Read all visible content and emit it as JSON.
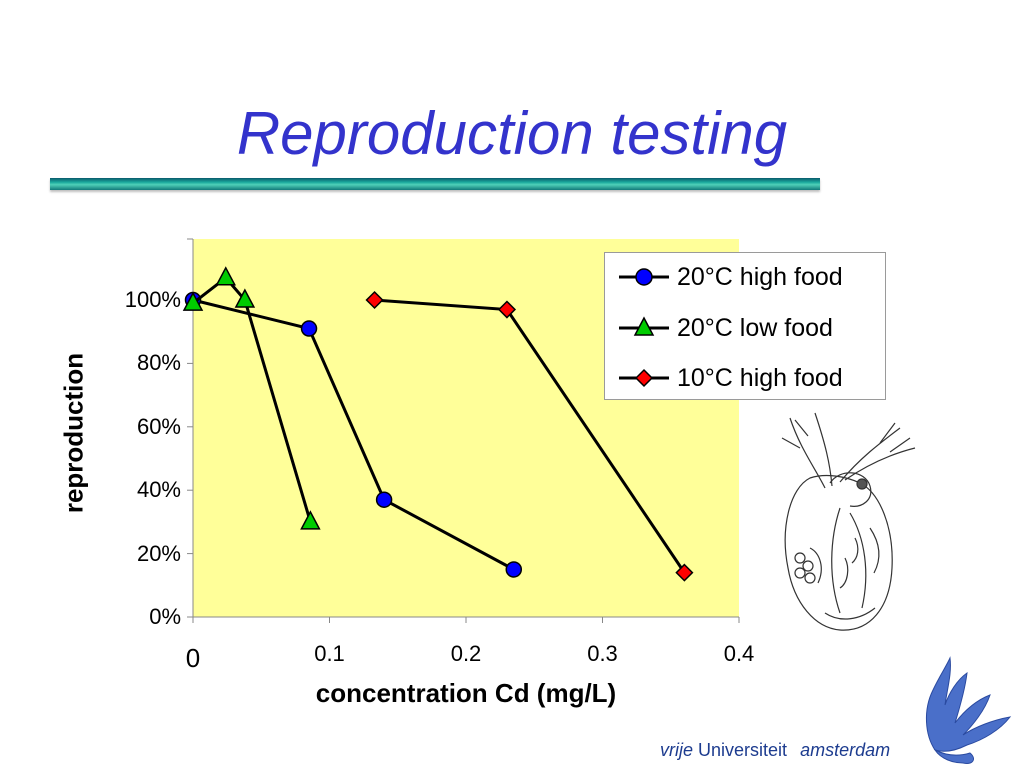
{
  "slide": {
    "title": "Reproduction testing",
    "brand": {
      "vrije": "vrije",
      "universiteit": "Universiteit",
      "amsterdam": "amsterdam"
    }
  },
  "colors": {
    "title": "#3333cc",
    "plot_background": "#ffff99",
    "title_rule": "#1aa89c",
    "series_line": "#000000"
  },
  "chart_data": {
    "type": "line",
    "xlabel": "concentration Cd (mg/L)",
    "ylabel": "reproduction",
    "xlim": [
      0,
      0.4
    ],
    "ylim": [
      0,
      1.2
    ],
    "x_ticks": [
      0,
      0.1,
      0.2,
      0.3,
      0.4
    ],
    "x_tick_labels": [
      "0",
      "0.1",
      "0.2",
      "0.3",
      "0.4"
    ],
    "y_ticks": [
      0,
      0.2,
      0.4,
      0.6,
      0.8,
      1.0
    ],
    "y_tick_labels": [
      "0%",
      "20%",
      "40%",
      "60%",
      "80%",
      "100%"
    ],
    "grid": false,
    "legend_position": "top-right",
    "series": [
      {
        "name": "20°C high food",
        "marker": "circle",
        "color": "#0000ff",
        "x": [
          0,
          0.085,
          0.14,
          0.235
        ],
        "y": [
          1.0,
          0.91,
          0.37,
          0.15
        ]
      },
      {
        "name": "20°C low food",
        "marker": "triangle",
        "color": "#00cc00",
        "x": [
          0,
          0.024,
          0.038,
          0.086
        ],
        "y": [
          0.99,
          1.07,
          1.0,
          0.3
        ]
      },
      {
        "name": "10°C high food",
        "marker": "diamond",
        "color": "#ff0000",
        "x": [
          0.133,
          0.23,
          0.36
        ],
        "y": [
          1.0,
          0.97,
          0.14
        ]
      }
    ]
  }
}
